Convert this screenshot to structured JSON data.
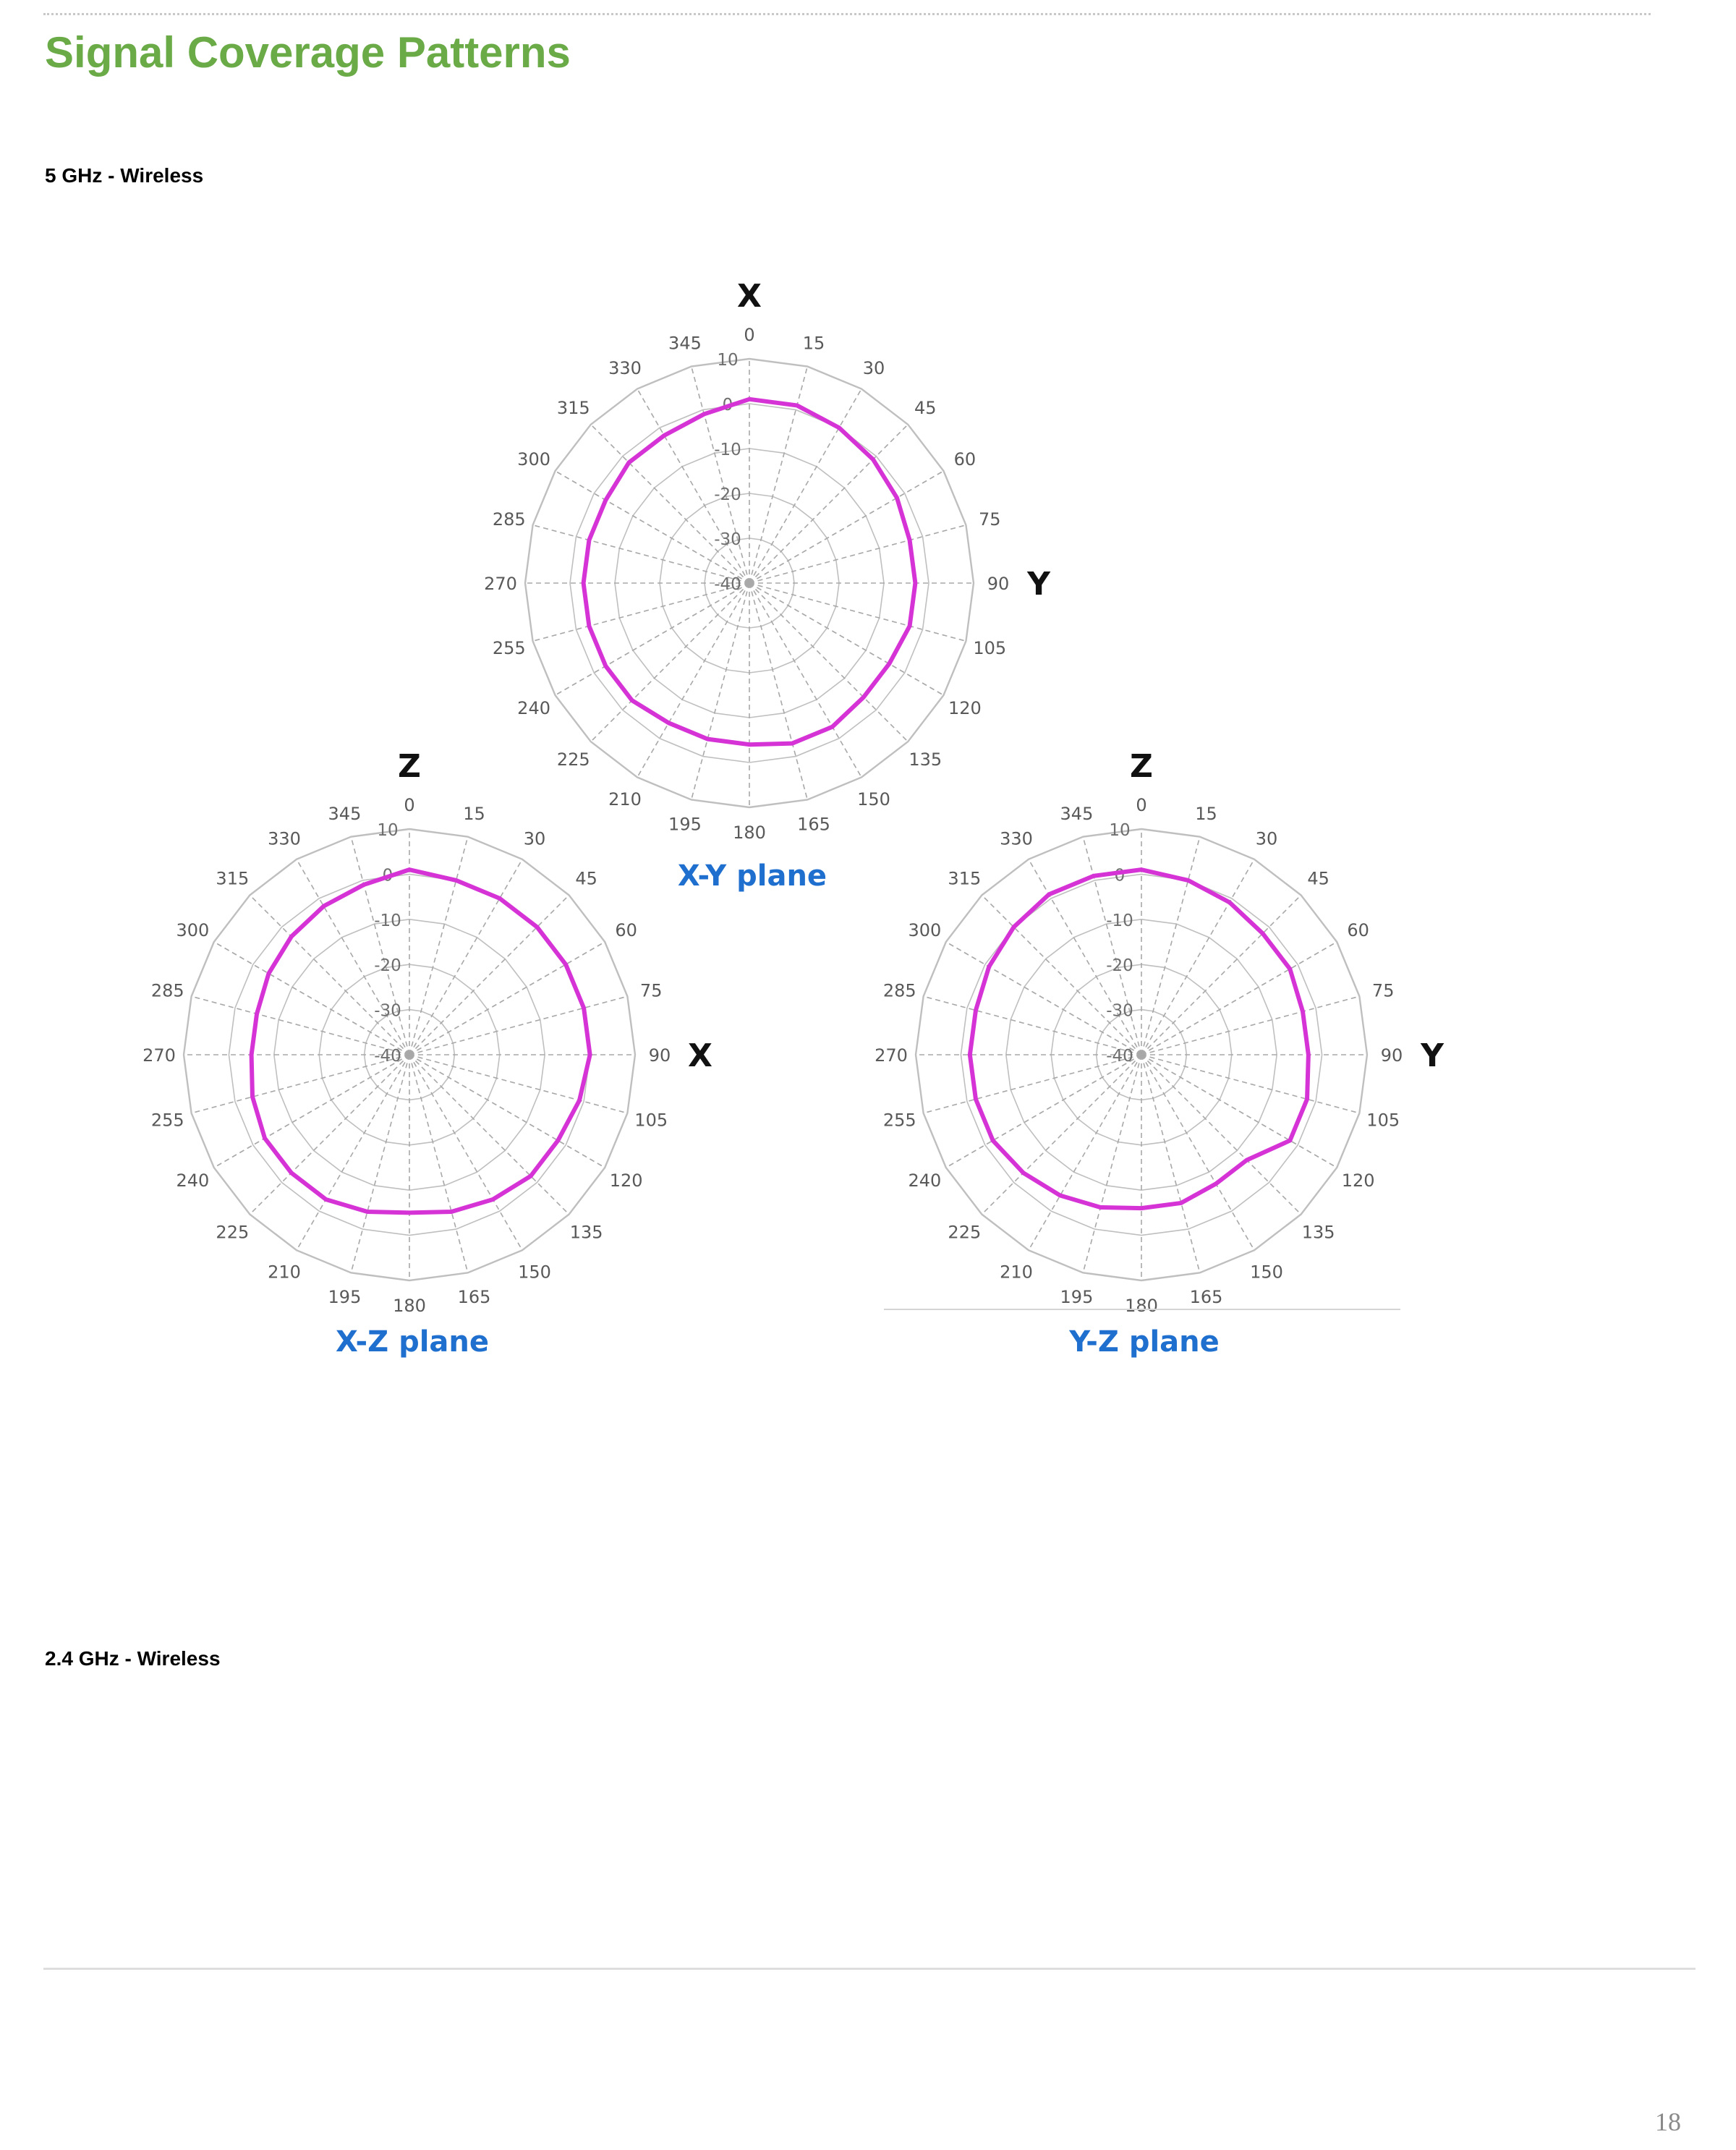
{
  "page": {
    "title": "Signal Coverage Patterns",
    "page_number": "18"
  },
  "sections": [
    {
      "heading": "5 GHz - Wireless"
    },
    {
      "heading": "2.4 GHz - Wireless"
    }
  ],
  "colors": {
    "title_green": "#6aab47",
    "plane_label_blue": "#1f6fcf",
    "trace_magenta": "#d633d6",
    "grid_gray": "#bfbfbf"
  },
  "chart_data": [
    {
      "type": "radar",
      "caption": "X-Y plane",
      "top_axis_label": "X",
      "side_axis_label": "Y",
      "angle_labels": [
        "0",
        "15",
        "30",
        "45",
        "60",
        "75",
        "90",
        "105",
        "120",
        "135",
        "150",
        "165",
        "180",
        "195",
        "210",
        "225",
        "240",
        "255",
        "270",
        "285",
        "300",
        "315",
        "330",
        "345"
      ],
      "radial_labels": [
        "10",
        "0",
        "-10",
        "-20",
        "-30",
        "-40"
      ],
      "rlim": [
        -40,
        10
      ],
      "series": [
        {
          "values": [
            1,
            1,
            0,
            -1,
            -2,
            -3,
            -3,
            -3,
            -4,
            -4,
            -3,
            -3,
            -4,
            -4,
            -4,
            -3,
            -3,
            -3,
            -3,
            -3,
            -3,
            -2,
            -2,
            -1
          ]
        }
      ]
    },
    {
      "type": "radar",
      "caption": "X-Z plane",
      "top_axis_label": "Z",
      "side_axis_label": "X",
      "angle_labels": [
        "0",
        "15",
        "30",
        "45",
        "60",
        "75",
        "90",
        "105",
        "120",
        "135",
        "150",
        "165",
        "180",
        "195",
        "210",
        "225",
        "240",
        "255",
        "270",
        "285",
        "300",
        "315",
        "330",
        "345"
      ],
      "radial_labels": [
        "10",
        "0",
        "-10",
        "-20",
        "-30",
        "-40"
      ],
      "rlim": [
        -40,
        10
      ],
      "series": [
        {
          "values": [
            1,
            0,
            0,
            0,
            0,
            0,
            0,
            -1,
            -2,
            -2,
            -3,
            -4,
            -5,
            -4,
            -3,
            -3,
            -3,
            -4,
            -5,
            -5,
            -4,
            -3,
            -2,
            -1
          ]
        }
      ]
    },
    {
      "type": "radar",
      "caption": "Y-Z plane",
      "top_axis_label": "Z",
      "side_axis_label": "Y",
      "angle_labels": [
        "0",
        "15",
        "30",
        "45",
        "60",
        "75",
        "90",
        "105",
        "120",
        "135",
        "150",
        "165",
        "180",
        "195",
        "210",
        "225",
        "240",
        "255",
        "270",
        "285",
        "300",
        "315",
        "330",
        "345"
      ],
      "radial_labels": [
        "10",
        "0",
        "-10",
        "-20",
        "-30",
        "-40"
      ],
      "rlim": [
        -40,
        10
      ],
      "series": [
        {
          "values": [
            1,
            0,
            -1,
            -2,
            -2,
            -3,
            -3,
            -2,
            -2,
            -7,
            -7,
            -6,
            -6,
            -5,
            -4,
            -3,
            -2,
            -2,
            -2,
            -2,
            -1,
            0,
            1,
            1
          ]
        }
      ]
    }
  ]
}
